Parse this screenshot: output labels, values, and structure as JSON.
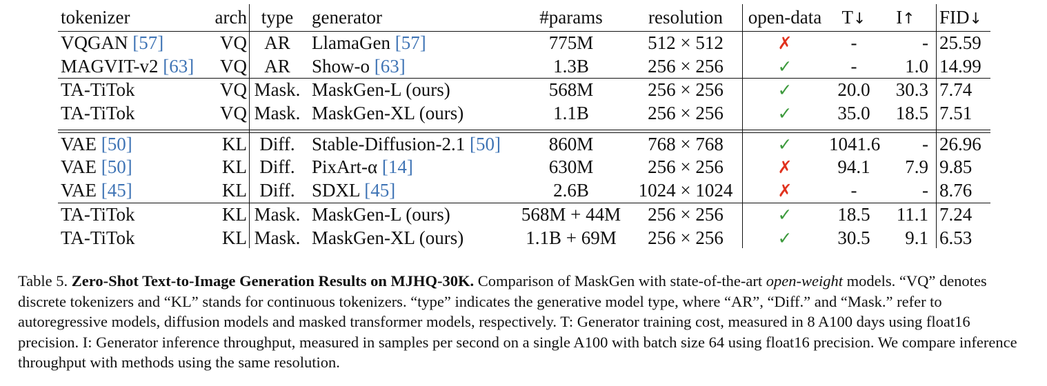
{
  "table": {
    "headers": {
      "tokenizer": "tokenizer",
      "arch": "arch",
      "type": "type",
      "generator": "generator",
      "params": "#params",
      "resolution": "resolution",
      "open_data": "open-data",
      "t": "T",
      "i": "I",
      "fid": "FID"
    },
    "header_arrows": {
      "t": "↓",
      "i": "↑",
      "fid": "↓"
    },
    "rows": [
      {
        "tokenizer": "VQGAN",
        "tokenizer_ref": "[57]",
        "arch": "VQ",
        "type": "AR",
        "generator": "LlamaGen",
        "generator_ref": "[57]",
        "params": "775M",
        "resolution": "512 × 512",
        "open_data": "✗",
        "t": "-",
        "i": "-",
        "fid": "25.59"
      },
      {
        "tokenizer": "MAGVIT-v2",
        "tokenizer_ref": "[63]",
        "arch": "VQ",
        "type": "AR",
        "generator": "Show-o",
        "generator_ref": "[63]",
        "params": "1.3B",
        "resolution": "256 × 256",
        "open_data": "✓",
        "t": "-",
        "i": "1.0",
        "fid": "14.99"
      },
      {
        "tokenizer": "TA-TiTok",
        "tokenizer_ref": "",
        "arch": "VQ",
        "type": "Mask.",
        "generator": "MaskGen-L (ours)",
        "generator_ref": "",
        "params": "568M",
        "resolution": "256 × 256",
        "open_data": "✓",
        "t": "20.0",
        "i": "30.3",
        "fid": "7.74"
      },
      {
        "tokenizer": "TA-TiTok",
        "tokenizer_ref": "",
        "arch": "VQ",
        "type": "Mask.",
        "generator": "MaskGen-XL (ours)",
        "generator_ref": "",
        "params": "1.1B",
        "resolution": "256 × 256",
        "open_data": "✓",
        "t": "35.0",
        "i": "18.5",
        "fid": "7.51"
      },
      {
        "tokenizer": "VAE",
        "tokenizer_ref": "[50]",
        "arch": "KL",
        "type": "Diff.",
        "generator": "Stable-Diffusion-2.1",
        "generator_ref": "[50]",
        "params": "860M",
        "resolution": "768 × 768",
        "open_data": "✓",
        "t": "1041.6",
        "i": "-",
        "fid": "26.96"
      },
      {
        "tokenizer": "VAE",
        "tokenizer_ref": "[50]",
        "arch": "KL",
        "type": "Diff.",
        "generator": "PixArt-α",
        "generator_ref": "[14]",
        "params": "630M",
        "resolution": "256 × 256",
        "open_data": "✗",
        "t": "94.1",
        "i": "7.9",
        "fid": "9.85"
      },
      {
        "tokenizer": "VAE",
        "tokenizer_ref": "[45]",
        "arch": "KL",
        "type": "Diff.",
        "generator": "SDXL",
        "generator_ref": "[45]",
        "params": "2.6B",
        "resolution": "1024 × 1024",
        "open_data": "✗",
        "t": "-",
        "i": "-",
        "fid": "8.76"
      },
      {
        "tokenizer": "TA-TiTok",
        "tokenizer_ref": "",
        "arch": "KL",
        "type": "Mask.",
        "generator": "MaskGen-L (ours)",
        "generator_ref": "",
        "params": "568M + 44M",
        "resolution": "256 × 256",
        "open_data": "✓",
        "t": "18.5",
        "i": "11.1",
        "fid": "7.24"
      },
      {
        "tokenizer": "TA-TiTok",
        "tokenizer_ref": "",
        "arch": "KL",
        "type": "Mask.",
        "generator": "MaskGen-XL (ours)",
        "generator_ref": "",
        "params": "1.1B + 69M",
        "resolution": "256 × 256",
        "open_data": "✓",
        "t": "30.5",
        "i": "9.1",
        "fid": "6.53"
      }
    ]
  },
  "caption": {
    "label": "Table 5.",
    "title": "Zero-Shot Text-to-Image Generation Results on MJHQ-30K.",
    "text1": "Comparison of MaskGen with state-of-the-art",
    "italic": "open-weight",
    "text2": "models. “VQ” denotes discrete tokenizers and “KL” stands for continuous tokenizers. “type” indicates the generative model type, where “AR”, “Diff.” and “Mask.” refer to autoregressive models, diffusion models and masked transformer models, respectively. T: Generator training cost, measured in 8 A100 days using float16 precision. I: Generator inference throughput, measured in samples per second on a single A100 with batch size 64 using float16 precision. We compare inference throughput with methods using the same resolution."
  },
  "colors": {
    "reference_link": "#3f74b5",
    "check_mark": "#3d9a3d",
    "cross_mark": "#e1321e"
  }
}
